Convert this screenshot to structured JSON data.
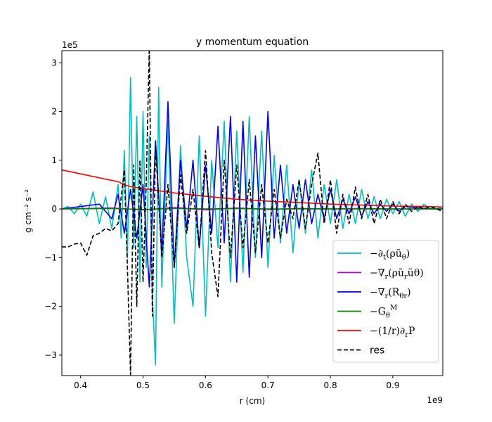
{
  "chart_data": {
    "type": "line",
    "title": "y momentum equation",
    "xlabel": "r (cm)",
    "ylabel": "g cm⁻² s⁻²",
    "x_scale_label": "1e9",
    "y_scale_label": "1e5",
    "xlim": [
      0.37,
      0.98
    ],
    "ylim": [
      -3.42,
      3.25
    ],
    "xticks": [
      {
        "value": 0.4,
        "label": "0.4"
      },
      {
        "value": 0.5,
        "label": "0.5"
      },
      {
        "value": 0.6,
        "label": "0.6"
      },
      {
        "value": 0.7,
        "label": "0.7"
      },
      {
        "value": 0.8,
        "label": "0.8"
      },
      {
        "value": 0.9,
        "label": "0.9"
      }
    ],
    "yticks": [
      {
        "value": 3,
        "label": "3"
      },
      {
        "value": 2,
        "label": "2"
      },
      {
        "value": 1,
        "label": "1"
      },
      {
        "value": 0,
        "label": "0"
      },
      {
        "value": -1,
        "label": "−1"
      },
      {
        "value": -2,
        "label": "−2"
      },
      {
        "value": -3,
        "label": "−3"
      }
    ],
    "grid": false,
    "legend_position": "lower-right",
    "series": [
      {
        "name": "−∂t(ρ̄ũθ)",
        "label_main": "−∂",
        "label_sub": "t",
        "label_rest": "(ρũ",
        "label_sub2": "θ",
        "label_end": ")",
        "color": "#00bfbf",
        "dash": "solid",
        "x": [
          0.37,
          0.38,
          0.39,
          0.4,
          0.41,
          0.42,
          0.43,
          0.44,
          0.45,
          0.46,
          0.465,
          0.47,
          0.475,
          0.48,
          0.485,
          0.49,
          0.495,
          0.5,
          0.505,
          0.51,
          0.515,
          0.52,
          0.525,
          0.53,
          0.54,
          0.55,
          0.56,
          0.57,
          0.58,
          0.59,
          0.6,
          0.61,
          0.62,
          0.63,
          0.64,
          0.65,
          0.66,
          0.67,
          0.68,
          0.69,
          0.7,
          0.71,
          0.72,
          0.73,
          0.74,
          0.75,
          0.76,
          0.77,
          0.78,
          0.79,
          0.8,
          0.81,
          0.82,
          0.83,
          0.84,
          0.85,
          0.86,
          0.87,
          0.88,
          0.89,
          0.9,
          0.91,
          0.92,
          0.93,
          0.94,
          0.95,
          0.96,
          0.97,
          0.98
        ],
        "y": [
          0.0,
          0.05,
          -0.1,
          0.1,
          -0.15,
          0.35,
          -0.3,
          0.25,
          -0.4,
          0.5,
          -0.6,
          1.2,
          -1.0,
          2.7,
          -0.8,
          1.9,
          -1.5,
          2.0,
          -1.2,
          1.5,
          -1.8,
          -3.2,
          2.5,
          -1.6,
          1.8,
          -2.35,
          1.3,
          -1.0,
          -2.0,
          1.5,
          -2.2,
          1.0,
          -0.8,
          1.8,
          -1.5,
          1.6,
          -1.3,
          1.9,
          -1.0,
          1.6,
          -1.2,
          1.1,
          -0.7,
          0.9,
          -0.9,
          0.6,
          -0.5,
          0.8,
          -0.6,
          0.5,
          -0.3,
          0.6,
          -0.4,
          0.3,
          -0.3,
          0.4,
          -0.2,
          0.25,
          -0.2,
          0.2,
          -0.1,
          0.15,
          -0.15,
          0.1,
          -0.05,
          0.1,
          0.0,
          0.05,
          0.0
        ]
      },
      {
        "name": "−∇r(ρ̄ũrũθ)",
        "label_main": "−∇",
        "label_sub": "r",
        "label_rest": "(ρũ",
        "label_sub2": "r",
        "label_end": "ũθ)",
        "color": "#bf00bf",
        "dash": "solid",
        "x": [
          0.37,
          0.45,
          0.5,
          0.55,
          0.6,
          0.65,
          0.7,
          0.75,
          0.8,
          0.85,
          0.9,
          0.98
        ],
        "y": [
          0.0,
          0.02,
          -0.02,
          0.03,
          -0.02,
          0.02,
          -0.01,
          0.01,
          0.0,
          0.01,
          0.0,
          0.0
        ]
      },
      {
        "name": "−∇r(R̄θr)",
        "label_main": "−∇",
        "label_sub": "r",
        "label_rest": "(R",
        "label_sub2": "θr",
        "label_end": ")",
        "color": "#0000ff",
        "dash": "solid",
        "x": [
          0.37,
          0.4,
          0.43,
          0.45,
          0.46,
          0.47,
          0.48,
          0.49,
          0.5,
          0.51,
          0.52,
          0.53,
          0.54,
          0.55,
          0.56,
          0.57,
          0.58,
          0.59,
          0.6,
          0.61,
          0.62,
          0.63,
          0.64,
          0.65,
          0.66,
          0.67,
          0.68,
          0.69,
          0.7,
          0.71,
          0.72,
          0.73,
          0.74,
          0.75,
          0.76,
          0.77,
          0.78,
          0.79,
          0.8,
          0.81,
          0.82,
          0.83,
          0.84,
          0.85,
          0.86,
          0.87,
          0.88,
          0.89,
          0.9,
          0.91,
          0.92,
          0.94,
          0.96,
          0.98
        ],
        "y": [
          0.0,
          0.05,
          0.1,
          -0.2,
          0.3,
          -0.5,
          0.4,
          -0.6,
          0.5,
          -1.6,
          1.4,
          -0.9,
          2.2,
          -1.2,
          1.0,
          -0.4,
          1.0,
          -0.8,
          0.9,
          -0.5,
          1.7,
          -0.7,
          1.9,
          -1.5,
          1.8,
          -1.4,
          1.5,
          -1.0,
          2.0,
          -0.6,
          0.9,
          -0.5,
          0.5,
          -0.4,
          0.6,
          -0.3,
          0.3,
          -0.2,
          0.4,
          -0.2,
          0.2,
          -0.1,
          0.25,
          -0.15,
          0.15,
          -0.1,
          0.1,
          -0.05,
          0.1,
          -0.05,
          0.05,
          0.02,
          0.0,
          0.0
        ]
      },
      {
        "name": "−G̅θᴹ",
        "label_main": "−G",
        "label_sub": "θ",
        "label_rest": "",
        "label_sup": "M",
        "label_end": "",
        "color": "#008000",
        "dash": "solid",
        "x": [
          0.37,
          0.45,
          0.5,
          0.55,
          0.6,
          0.65,
          0.7,
          0.75,
          0.8,
          0.85,
          0.9,
          0.98
        ],
        "y": [
          0.0,
          0.01,
          -0.01,
          0.01,
          0.0,
          0.01,
          0.0,
          0.0,
          0.0,
          0.0,
          0.0,
          0.0
        ]
      },
      {
        "name": "−(1/r)∂rP̄",
        "label_main": "−(1/r)∂",
        "label_sub": "r",
        "label_rest": "P",
        "label_sub2": "",
        "label_end": "",
        "color": "#ff0000",
        "dash": "solid",
        "x": [
          0.37,
          0.4,
          0.43,
          0.46,
          0.47,
          0.48,
          0.5,
          0.55,
          0.6,
          0.65,
          0.7,
          0.75,
          0.8,
          0.85,
          0.9,
          0.95,
          0.98
        ],
        "y": [
          0.8,
          0.72,
          0.64,
          0.56,
          0.5,
          0.46,
          0.42,
          0.33,
          0.26,
          0.2,
          0.16,
          0.13,
          0.1,
          0.08,
          0.06,
          0.05,
          0.04
        ]
      },
      {
        "name": "res",
        "label_main": "res",
        "label_sub": "",
        "label_rest": "",
        "label_sub2": "",
        "label_end": "",
        "color": "#000000",
        "dash": "dashed",
        "x": [
          0.37,
          0.38,
          0.39,
          0.4,
          0.41,
          0.42,
          0.43,
          0.44,
          0.45,
          0.46,
          0.47,
          0.475,
          0.48,
          0.485,
          0.49,
          0.495,
          0.5,
          0.505,
          0.51,
          0.515,
          0.52,
          0.53,
          0.54,
          0.55,
          0.56,
          0.57,
          0.58,
          0.59,
          0.6,
          0.61,
          0.62,
          0.63,
          0.64,
          0.65,
          0.66,
          0.67,
          0.68,
          0.69,
          0.7,
          0.71,
          0.72,
          0.73,
          0.74,
          0.75,
          0.76,
          0.77,
          0.78,
          0.79,
          0.8,
          0.81,
          0.82,
          0.83,
          0.84,
          0.85,
          0.86,
          0.87,
          0.88,
          0.89,
          0.9,
          0.91,
          0.92,
          0.93,
          0.94,
          0.95,
          0.96,
          0.97,
          0.98
        ],
        "y": [
          -0.78,
          -0.78,
          -0.72,
          -0.7,
          -0.95,
          -0.55,
          -0.5,
          -0.4,
          -0.45,
          -0.3,
          0.8,
          -1.2,
          -3.4,
          0.9,
          -2.0,
          1.0,
          -1.5,
          0.5,
          3.3,
          -2.2,
          1.3,
          -1.0,
          0.5,
          -1.2,
          0.7,
          -0.5,
          0.4,
          -0.8,
          1.2,
          -0.9,
          -1.8,
          1.0,
          -1.0,
          0.9,
          -0.8,
          0.6,
          -0.9,
          0.5,
          -0.7,
          0.4,
          -0.6,
          0.2,
          -0.2,
          0.6,
          -0.4,
          0.5,
          1.15,
          -0.3,
          0.6,
          -0.5,
          0.3,
          -0.3,
          0.45,
          -0.2,
          0.3,
          -0.3,
          0.2,
          -0.2,
          0.15,
          -0.1,
          0.1,
          -0.05,
          0.05,
          0.0,
          0.05,
          0.0,
          -0.05
        ]
      }
    ]
  }
}
